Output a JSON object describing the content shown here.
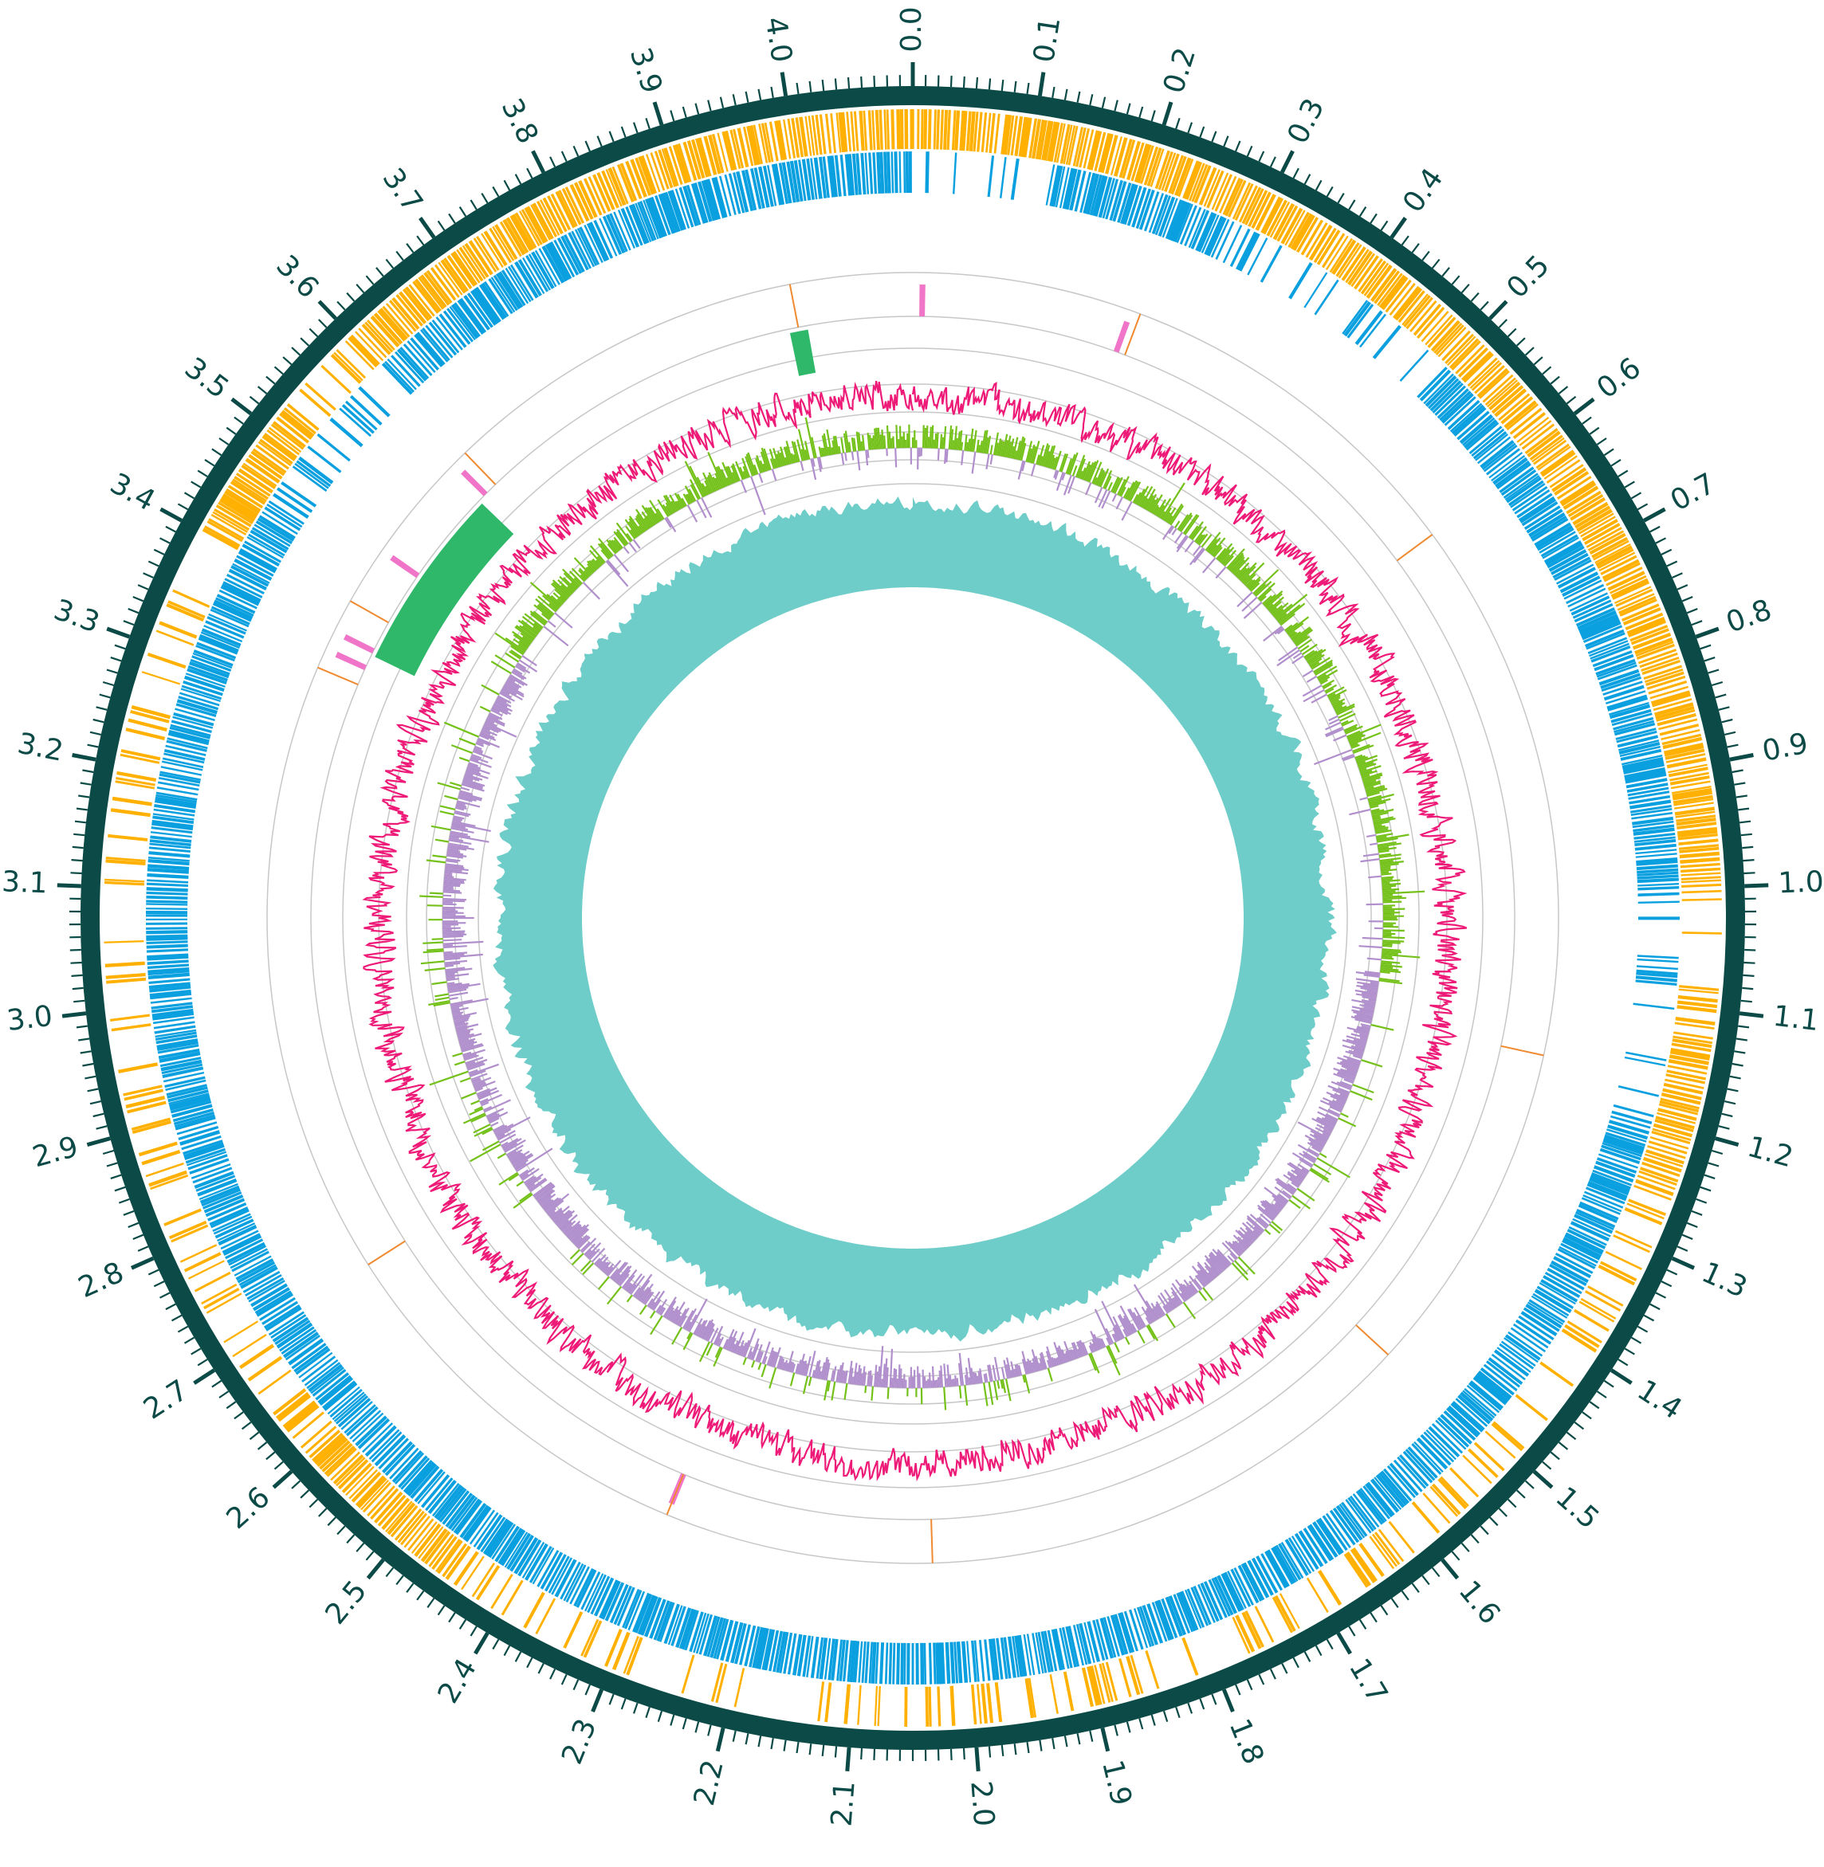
{
  "colors": {
    "backbone": "#0b4a46",
    "forward_genes": "#ffb000",
    "reverse_genes": "#0aa0e0",
    "rna_pink": "#f075c8",
    "rna_orange": "#f08a30",
    "islands": "#2fb86a",
    "gc_content": "#ee1a78",
    "gc_skew_positive": "#74c11a",
    "gc_skew_negative": "#b08fcc",
    "coverage": "#6ecdc8",
    "guide": "#c7c7c7",
    "label": "#0b4a46"
  },
  "chart_data": {
    "type": "circular-genome-map",
    "genome_length_mb": 4.1,
    "major_tick_labels": [
      "0.0",
      "0.1",
      "0.2",
      "0.3",
      "0.4",
      "0.5",
      "0.6",
      "0.7",
      "0.8",
      "0.9",
      "1.0",
      "1.1",
      "1.2",
      "1.3",
      "1.4",
      "1.5",
      "1.6",
      "1.7",
      "1.8",
      "1.9",
      "2.0",
      "2.1",
      "2.2",
      "2.3",
      "2.4",
      "2.5",
      "2.6",
      "2.7",
      "2.8",
      "2.9",
      "3.0",
      "3.1",
      "3.2",
      "3.3",
      "3.4",
      "3.5",
      "3.6",
      "3.7",
      "3.8",
      "3.9",
      "4.0"
    ],
    "pink_features_mb": [
      0.01,
      0.225,
      3.585,
      3.47,
      3.375,
      3.355,
      2.305
    ],
    "orange_features_mb": [
      3.975,
      0.235,
      3.6,
      3.41,
      3.335,
      0.61,
      1.165,
      1.51,
      2.03,
      2.305,
      2.705
    ],
    "island_features_mb": [
      [
        3.965,
        3.985
      ],
      [
        3.37,
        3.575
      ]
    ],
    "forward_gene_gaps_mb": [
      [
        0.07,
        0.075
      ],
      [
        1.0,
        1.12
      ],
      [
        1.26,
        2.45
      ],
      [
        2.6,
        3.4
      ],
      [
        3.52,
        3.6
      ]
    ],
    "reverse_gene_gaps_mb": [
      [
        0.0,
        0.12
      ],
      [
        0.28,
        0.5
      ],
      [
        1.0,
        1.2
      ],
      [
        3.45,
        3.6
      ]
    ]
  }
}
